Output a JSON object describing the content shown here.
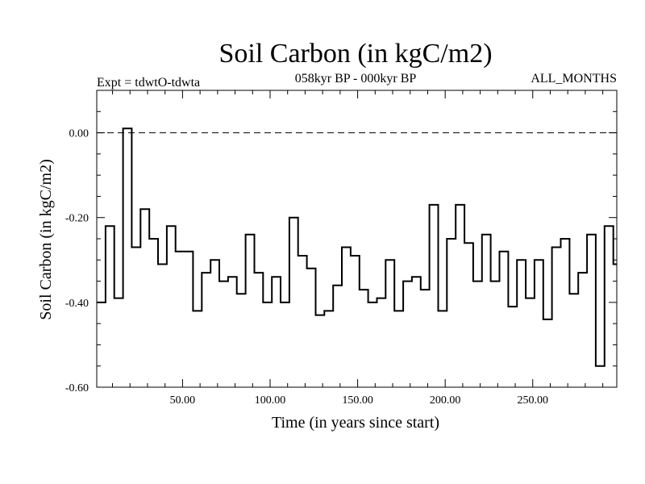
{
  "chart_data": {
    "type": "line",
    "step": true,
    "title": "Soil Carbon (in kgC/m2)",
    "subtitle": "058kyr BP - 000kyr BP",
    "experiment": "Expt = tdwtO-tdwta",
    "period": "ALL_MONTHS",
    "xlabel": "Time (in years since start)",
    "ylabel": "Soil Carbon (in kgC/m2)",
    "xlim": [
      1,
      298
    ],
    "ylim": [
      -0.6,
      0.1
    ],
    "x_ticks": [
      50,
      100,
      150,
      200,
      250
    ],
    "x_tick_labels": [
      "50.00",
      "100.00",
      "150.00",
      "200.00",
      "250.00"
    ],
    "y_ticks": [
      -0.6,
      -0.4,
      -0.2,
      0.0
    ],
    "y_tick_labels": [
      "-0.60",
      "-0.40",
      "-0.20",
      "0.00"
    ],
    "reference_line": 0.0,
    "series": [
      {
        "name": "Soil Carbon",
        "x": [
          1,
          6,
          11,
          16,
          21,
          26,
          31,
          36,
          41,
          46,
          51,
          56,
          61,
          66,
          71,
          76,
          81,
          86,
          91,
          96,
          101,
          106,
          111,
          116,
          121,
          126,
          131,
          136,
          141,
          146,
          151,
          156,
          161,
          166,
          171,
          176,
          181,
          186,
          191,
          196,
          201,
          206,
          211,
          216,
          221,
          226,
          231,
          236,
          241,
          246,
          251,
          256,
          261,
          266,
          271,
          276,
          281,
          286,
          291,
          296
        ],
        "values": [
          -0.4,
          -0.22,
          -0.39,
          0.01,
          -0.27,
          -0.18,
          -0.25,
          -0.31,
          -0.22,
          -0.28,
          -0.28,
          -0.42,
          -0.33,
          -0.3,
          -0.35,
          -0.34,
          -0.38,
          -0.24,
          -0.33,
          -0.4,
          -0.34,
          -0.4,
          -0.2,
          -0.29,
          -0.32,
          -0.43,
          -0.42,
          -0.36,
          -0.27,
          -0.29,
          -0.37,
          -0.4,
          -0.39,
          -0.3,
          -0.42,
          -0.35,
          -0.34,
          -0.37,
          -0.17,
          -0.42,
          -0.25,
          -0.17,
          -0.26,
          -0.35,
          -0.24,
          -0.35,
          -0.28,
          -0.41,
          -0.3,
          -0.39,
          -0.3,
          -0.44,
          -0.27,
          -0.25,
          -0.38,
          -0.33,
          -0.24,
          -0.55,
          -0.22,
          -0.31
        ]
      }
    ]
  }
}
